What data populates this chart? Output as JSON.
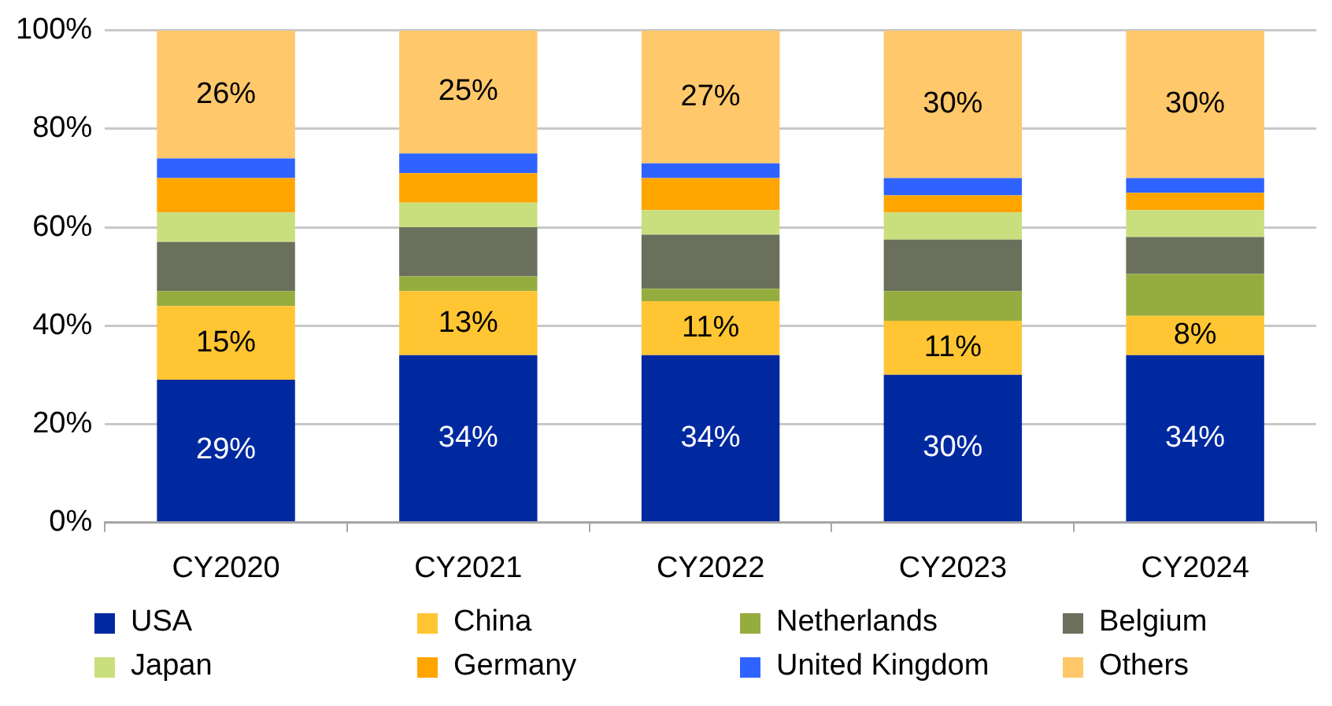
{
  "chart_data": {
    "type": "bar",
    "stacked": true,
    "categories": [
      "CY2020",
      "CY2021",
      "CY2022",
      "CY2023",
      "CY2024"
    ],
    "series": [
      {
        "name": "USA",
        "color": "#0029a0",
        "values": [
          29,
          34,
          34,
          30,
          34
        ],
        "value_labels": [
          "29%",
          "34%",
          "34%",
          "30%",
          "34%"
        ]
      },
      {
        "name": "China",
        "color": "#ffc533",
        "values": [
          15,
          13,
          11,
          11,
          8
        ],
        "value_labels": [
          "15%",
          "13%",
          "11%",
          "11%",
          "8%"
        ]
      },
      {
        "name": "Netherlands",
        "color": "#95ad3e",
        "values": [
          3,
          3,
          2.5,
          6,
          8.5
        ]
      },
      {
        "name": "Belgium",
        "color": "#6b705c",
        "values": [
          10,
          10,
          11,
          10.5,
          7.5
        ]
      },
      {
        "name": "Japan",
        "color": "#c9df7e",
        "values": [
          6,
          5,
          5,
          5.5,
          5.5
        ]
      },
      {
        "name": "Germany",
        "color": "#ffa500",
        "values": [
          7,
          6,
          6.5,
          3.5,
          3.5
        ]
      },
      {
        "name": "United Kingdom",
        "color": "#2f63ff",
        "values": [
          4,
          4,
          3,
          3.5,
          3
        ]
      },
      {
        "name": "Others",
        "color": "#ffc86b",
        "values": [
          26,
          25,
          27,
          30,
          30
        ],
        "value_labels": [
          "26%",
          "25%",
          "27%",
          "30%",
          "30%"
        ]
      }
    ],
    "ylim": [
      0,
      100
    ],
    "yticks": [
      {
        "value": 0,
        "label": "0%"
      },
      {
        "value": 20,
        "label": "20%"
      },
      {
        "value": 40,
        "label": "40%"
      },
      {
        "value": 60,
        "label": "60%"
      },
      {
        "value": 80,
        "label": "80%"
      },
      {
        "value": 100,
        "label": "100%"
      }
    ],
    "grid": "y",
    "legend": "bottom"
  }
}
